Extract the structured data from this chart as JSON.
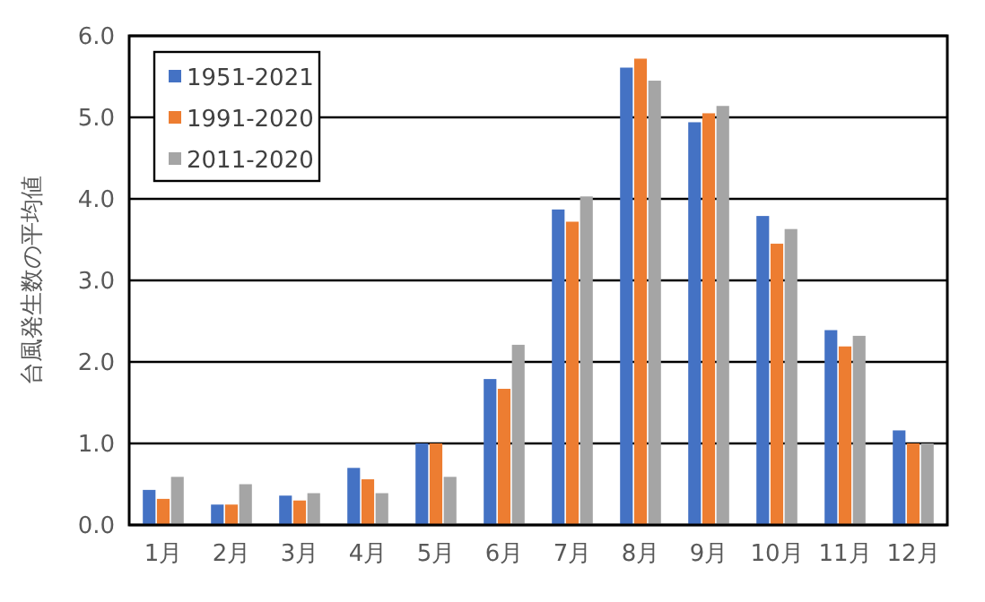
{
  "chart_data": {
    "type": "bar",
    "ylabel": "台風発生数の平均値",
    "categories": [
      "1月",
      "2月",
      "3月",
      "4月",
      "5月",
      "6月",
      "7月",
      "8月",
      "9月",
      "10月",
      "11月",
      "12月"
    ],
    "series": [
      {
        "name": "1951-2021",
        "color": "#4472c4",
        "values": [
          0.43,
          0.25,
          0.36,
          0.7,
          1.0,
          1.79,
          3.87,
          5.61,
          4.94,
          3.79,
          2.39,
          1.16
        ]
      },
      {
        "name": "1991-2020",
        "color": "#ed7d31",
        "values": [
          0.32,
          0.25,
          0.3,
          0.56,
          1.0,
          1.67,
          3.72,
          5.72,
          5.05,
          3.45,
          2.19,
          1.0
        ]
      },
      {
        "name": "2011-2020",
        "color": "#a5a5a5",
        "values": [
          0.59,
          0.5,
          0.39,
          0.39,
          0.59,
          2.21,
          4.03,
          5.45,
          5.14,
          3.63,
          2.32,
          1.0
        ]
      }
    ],
    "ylim": [
      0,
      6
    ],
    "yticks": [
      {
        "value": 0,
        "label": "0.0"
      },
      {
        "value": 1,
        "label": "1.0"
      },
      {
        "value": 2,
        "label": "2.0"
      },
      {
        "value": 3,
        "label": "3.0"
      },
      {
        "value": 4,
        "label": "4.0"
      },
      {
        "value": 5,
        "label": "5.0"
      },
      {
        "value": 6,
        "label": "6.0"
      }
    ],
    "grid": "y",
    "legend": "top left"
  }
}
